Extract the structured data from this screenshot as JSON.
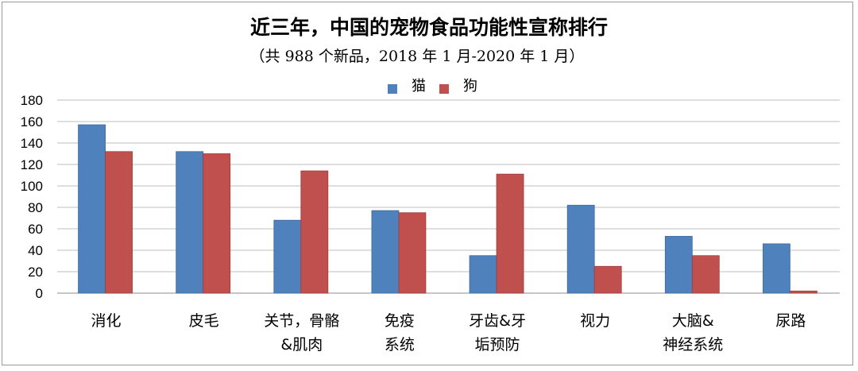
{
  "chart_data": {
    "type": "bar",
    "title": "近三年，中国的宠物食品功能性宣称排行",
    "subtitle": "（共 988 个新品，2018 年 1 月-2020 年 1 月）",
    "categories": [
      [
        "消化"
      ],
      [
        "皮毛"
      ],
      [
        "关节，骨骼",
        "&肌肉"
      ],
      [
        "免疫",
        "系统"
      ],
      [
        "牙齿&牙",
        "垢预防"
      ],
      [
        "视力"
      ],
      [
        "大脑&",
        "神经系统"
      ],
      [
        "尿路"
      ]
    ],
    "series": [
      {
        "name": "猫",
        "color": "#4f81bd",
        "values": [
          157,
          132,
          68,
          77,
          35,
          82,
          53,
          46
        ]
      },
      {
        "name": "狗",
        "color": "#c0504d",
        "values": [
          132,
          130,
          114,
          75,
          111,
          25,
          35,
          2
        ]
      }
    ],
    "ylim": [
      0,
      180
    ],
    "yticks": [
      0,
      20,
      40,
      60,
      80,
      100,
      120,
      140,
      160,
      180
    ],
    "grid": true,
    "legend": "top-center"
  }
}
